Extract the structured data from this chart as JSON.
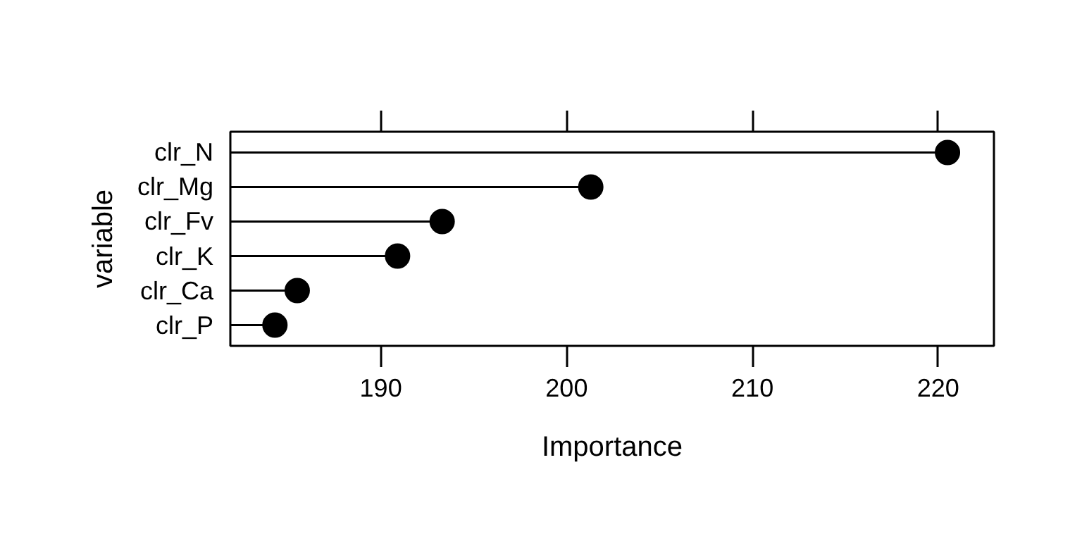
{
  "chart_data": {
    "type": "lollipop",
    "orientation": "horizontal",
    "xlabel": "Importance",
    "ylabel": "variable",
    "categories": [
      "clr_N",
      "clr_Mg",
      "clr_Fv",
      "clr_K",
      "clr_Ca",
      "clr_P"
    ],
    "values": [
      220.5,
      201.3,
      193.3,
      190.9,
      185.5,
      184.3
    ],
    "color": "#000000",
    "marker": "circle",
    "xlim": [
      181.9,
      223.0
    ],
    "xticks": [
      190,
      200,
      210,
      220
    ],
    "grid": false
  }
}
